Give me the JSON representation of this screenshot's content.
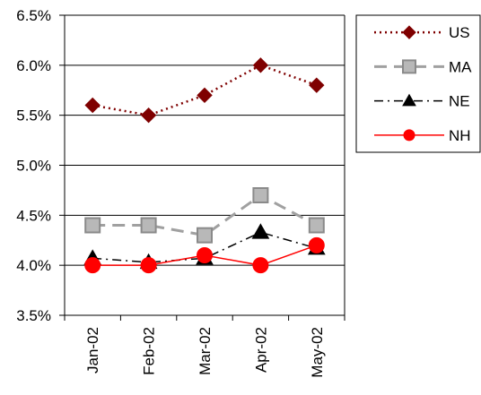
{
  "chart_data": {
    "type": "line",
    "categories": [
      "Jan-02",
      "Feb-02",
      "Mar-02",
      "Apr-02",
      "May-02"
    ],
    "ylim": [
      3.5,
      6.5
    ],
    "yticks": [
      3.5,
      4.0,
      4.5,
      5.0,
      5.5,
      6.0,
      6.5
    ],
    "ytick_labels": [
      "3.5%",
      "4.0%",
      "4.5%",
      "5.0%",
      "5.5%",
      "6.0%",
      "6.5%"
    ],
    "grid": true,
    "legend": "top-right",
    "series": [
      {
        "name": "US",
        "values": [
          5.6,
          5.5,
          5.7,
          6.0,
          5.8
        ],
        "color": "#7f0000",
        "marker": "diamond",
        "line_style": "dotted"
      },
      {
        "name": "MA",
        "values": [
          4.4,
          4.4,
          4.3,
          4.7,
          4.4
        ],
        "color": "#a0a0a0",
        "marker": "square",
        "line_style": "dashed"
      },
      {
        "name": "NE",
        "values": [
          4.07,
          4.03,
          4.07,
          4.33,
          4.17
        ],
        "color": "#000000",
        "marker": "triangle",
        "line_style": "dash-dot"
      },
      {
        "name": "NH",
        "values": [
          4.0,
          4.0,
          4.1,
          4.0,
          4.2
        ],
        "color": "#ff0000",
        "marker": "circle",
        "line_style": "solid"
      }
    ]
  }
}
